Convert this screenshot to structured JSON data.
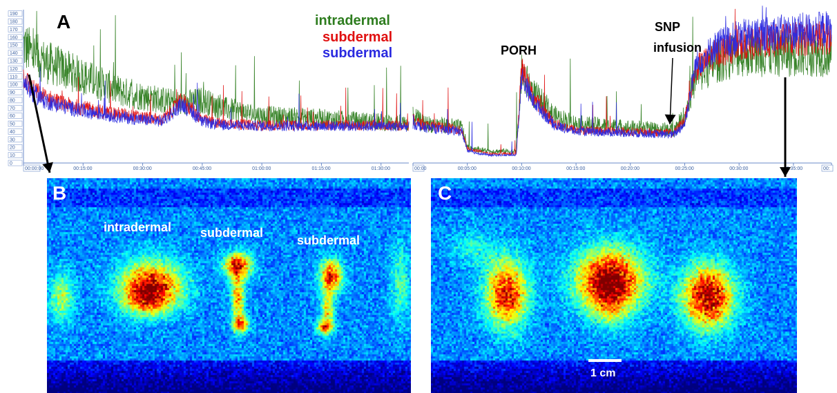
{
  "figure": {
    "panel_labels": [
      "A",
      "B",
      "C"
    ],
    "legend": [
      {
        "label": "intradermal",
        "color": "#2e7d1f"
      },
      {
        "label": "subdermal",
        "color": "#e01010"
      },
      {
        "label": "subdermal",
        "color": "#2a2ae0"
      }
    ],
    "annotations": {
      "porh": "PORH",
      "snp_line1": "SNP",
      "snp_line2": "infusion"
    },
    "image_b_labels": [
      "intradermal",
      "subdermal",
      "subdermal"
    ],
    "scale_bar": "1 cm"
  },
  "chart_data": [
    {
      "type": "line",
      "panel": "A-left",
      "ylim": [
        0,
        195
      ],
      "y_ticks": [
        "0",
        "10",
        "20",
        "30",
        "40",
        "50",
        "60",
        "70",
        "80",
        "90",
        "100",
        "110",
        "120",
        "130",
        "140",
        "150",
        "160",
        "170",
        "180",
        "190"
      ],
      "x_ticks": [
        "00:00:00",
        "00:15:00",
        "00:30:00",
        "00:45:00",
        "01:00:00",
        "01:15:00",
        "01:30:00"
      ],
      "series": [
        {
          "name": "intradermal",
          "color": "#2e7d1f",
          "x_min": [
            0,
            2,
            5,
            10,
            15,
            20,
            25,
            30,
            35,
            40,
            45,
            50,
            60,
            70,
            80,
            90,
            97
          ],
          "values": [
            150,
            140,
            130,
            120,
            110,
            100,
            90,
            85,
            80,
            75,
            80,
            70,
            60,
            58,
            55,
            52,
            50
          ]
        },
        {
          "name": "subdermal",
          "color": "#e01010",
          "x_min": [
            0,
            2,
            5,
            10,
            15,
            20,
            25,
            30,
            35,
            40,
            45,
            50,
            60,
            70,
            80,
            90,
            97
          ],
          "values": [
            110,
            95,
            85,
            75,
            70,
            65,
            62,
            58,
            55,
            80,
            55,
            50,
            48,
            48,
            48,
            48,
            47
          ]
        },
        {
          "name": "subdermal",
          "color": "#2a2ae0",
          "x_min": [
            0,
            2,
            5,
            10,
            15,
            20,
            25,
            30,
            35,
            40,
            45,
            50,
            60,
            70,
            80,
            90,
            97
          ],
          "values": [
            105,
            90,
            80,
            72,
            66,
            62,
            58,
            55,
            53,
            75,
            52,
            48,
            47,
            47,
            47,
            47,
            46
          ]
        }
      ]
    },
    {
      "type": "line",
      "panel": "A-right",
      "ylim": [
        0,
        195
      ],
      "x_ticks": [
        "00:00",
        "00:05:00",
        "00:10:00",
        "00:15:00",
        "00:20:00",
        "00:25:00",
        "00:30:00",
        "00:35:00",
        "00:"
      ],
      "series": [
        {
          "name": "intradermal",
          "color": "#2e7d1f",
          "x_min": [
            0,
            1,
            3,
            4.5,
            5,
            7,
            9,
            9.5,
            10,
            11,
            13,
            15,
            20,
            24,
            25,
            26,
            28,
            30,
            33,
            36,
            38
          ],
          "values": [
            60,
            50,
            48,
            45,
            20,
            15,
            15,
            15,
            115,
            90,
            60,
            50,
            45,
            42,
            60,
            110,
            130,
            140,
            140,
            140,
            140
          ]
        },
        {
          "name": "subdermal",
          "color": "#e01010",
          "x_min": [
            0,
            1,
            3,
            4.5,
            5,
            7,
            9,
            9.5,
            10,
            11,
            13,
            15,
            20,
            24,
            25,
            26,
            28,
            30,
            33,
            36,
            38
          ],
          "values": [
            55,
            48,
            45,
            42,
            18,
            12,
            12,
            12,
            120,
            85,
            50,
            42,
            40,
            38,
            55,
            120,
            140,
            150,
            155,
            158,
            160
          ]
        },
        {
          "name": "subdermal",
          "color": "#2a2ae0",
          "x_min": [
            0,
            1,
            3,
            4.5,
            5,
            7,
            9,
            9.5,
            10,
            11,
            13,
            15,
            20,
            24,
            25,
            26,
            28,
            30,
            33,
            36,
            38
          ],
          "values": [
            50,
            45,
            42,
            40,
            15,
            10,
            10,
            10,
            110,
            80,
            48,
            40,
            38,
            36,
            50,
            125,
            150,
            160,
            165,
            168,
            170
          ]
        }
      ]
    }
  ]
}
